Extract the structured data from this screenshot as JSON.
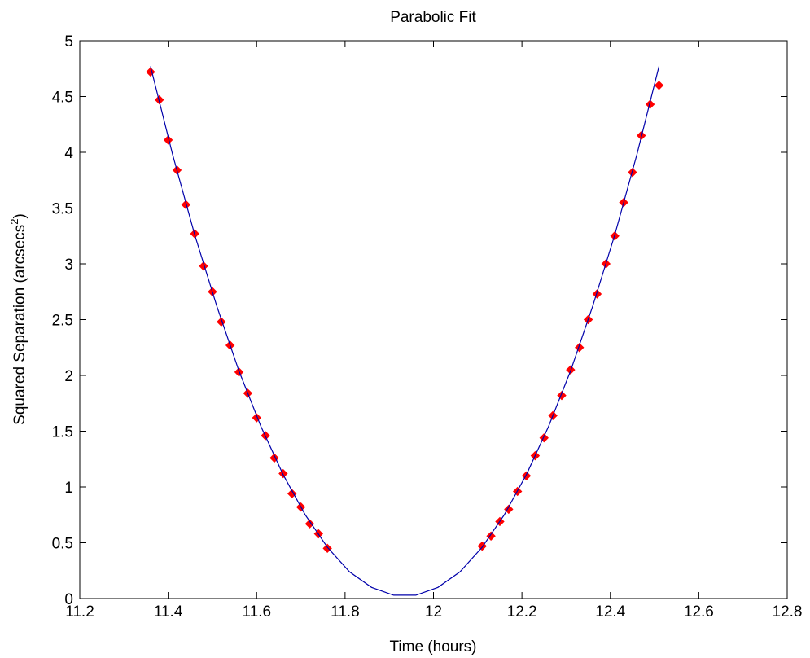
{
  "chart_data": {
    "type": "line",
    "title": "Parabolic Fit",
    "xlabel": "Time (hours)",
    "ylabel": [
      "Squared Separation (arcsecs",
      "2",
      ")"
    ],
    "xlim": [
      11.2,
      12.8
    ],
    "ylim": [
      0,
      5
    ],
    "xticks": [
      11.2,
      11.4,
      11.6,
      11.8,
      12,
      12.2,
      12.4,
      12.6,
      12.8
    ],
    "yticks": [
      0,
      0.5,
      1,
      1.5,
      2,
      2.5,
      3,
      3.5,
      4,
      4.5,
      5
    ],
    "series": [
      {
        "type": "scatter",
        "marker": "diamond",
        "color": "#ff0000",
        "x": [
          11.36,
          11.38,
          11.4,
          11.42,
          11.44,
          11.46,
          11.48,
          11.5,
          11.52,
          11.54,
          11.56,
          11.58,
          11.6,
          11.62,
          11.64,
          11.66,
          11.68,
          11.7,
          11.72,
          11.74,
          11.76,
          12.11,
          12.13,
          12.15,
          12.17,
          12.19,
          12.21,
          12.23,
          12.25,
          12.27,
          12.29,
          12.31,
          12.33,
          12.35,
          12.37,
          12.39,
          12.41,
          12.43,
          12.45,
          12.47,
          12.49,
          12.51
        ],
        "values": [
          4.72,
          4.47,
          4.11,
          3.84,
          3.53,
          3.27,
          2.98,
          2.75,
          2.48,
          2.27,
          2.03,
          1.84,
          1.62,
          1.46,
          1.26,
          1.12,
          0.94,
          0.82,
          0.67,
          0.58,
          0.45,
          0.47,
          0.56,
          0.69,
          0.8,
          0.96,
          1.1,
          1.28,
          1.44,
          1.64,
          1.82,
          2.05,
          2.25,
          2.5,
          2.73,
          3.0,
          3.25,
          3.55,
          3.82,
          4.15,
          4.43,
          4.6
        ]
      },
      {
        "type": "line",
        "color": "#0000aa",
        "x": [
          11.36,
          11.41,
          11.46,
          11.51,
          11.56,
          11.61,
          11.66,
          11.71,
          11.76,
          11.81,
          11.86,
          11.91,
          11.96,
          12.01,
          12.06,
          12.11,
          12.16,
          12.21,
          12.26,
          12.31,
          12.36,
          12.41,
          12.46,
          12.51
        ],
        "values": [
          4.77,
          3.98,
          3.26,
          2.62,
          2.04,
          1.54,
          1.11,
          0.75,
          0.46,
          0.24,
          0.1,
          0.03,
          0.03,
          0.1,
          0.24,
          0.46,
          0.75,
          1.11,
          1.54,
          2.04,
          2.62,
          3.26,
          3.98,
          4.77
        ]
      }
    ]
  }
}
